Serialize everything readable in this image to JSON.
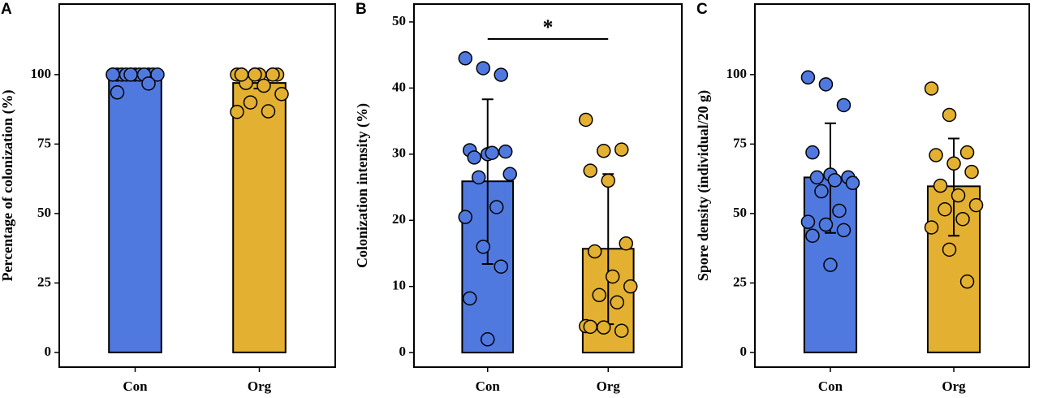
{
  "chart_data": [
    {
      "type": "bar",
      "panel_label": "A",
      "y_label": "Percentage of colonization (%)",
      "categories": [
        "Con",
        "Org"
      ],
      "colors": [
        "#5079e0",
        "#e3b031"
      ],
      "values": [
        99.6,
        97
      ],
      "error_lower": [
        98.6,
        95
      ],
      "error_upper": [
        100.6,
        99
      ],
      "points": [
        [
          100,
          100,
          100,
          100,
          100,
          100,
          100,
          100,
          100,
          100,
          100,
          100,
          100,
          96.8,
          93.6
        ],
        [
          100,
          100,
          100,
          100,
          100,
          100,
          97,
          96,
          93,
          90,
          86.8,
          86.6,
          100,
          100,
          100
        ]
      ],
      "ylim": [
        -5.3,
        125.4
      ],
      "yticks": [
        0,
        25,
        50,
        75,
        100
      ]
    },
    {
      "type": "bar",
      "panel_label": "B",
      "y_label": "Colonization intensity (%)",
      "categories": [
        "Con",
        "Org"
      ],
      "colors": [
        "#5079e0",
        "#e3b031"
      ],
      "values": [
        25.9,
        15.7
      ],
      "error_lower": [
        13.4,
        4.3
      ],
      "error_upper": [
        38.3,
        27
      ],
      "points": [
        [
          44.5,
          43,
          42,
          30.6,
          30,
          30.4,
          29.5,
          30.2,
          27,
          26.5,
          22,
          20.5,
          16,
          13,
          8.2,
          2
        ],
        [
          35.2,
          30.5,
          30.7,
          27.5,
          26,
          16.5,
          15.3,
          11.5,
          10,
          8.7,
          7.6,
          4,
          3.8,
          3.3,
          3.9
        ]
      ],
      "annotation": "*",
      "ylim": [
        -2.2,
        52.7
      ],
      "yticks": [
        0,
        10,
        20,
        30,
        40,
        50
      ]
    },
    {
      "type": "bar",
      "panel_label": "C",
      "y_label": "Spore density (individual/20 g)",
      "categories": [
        "Con",
        "Org"
      ],
      "colors": [
        "#5079e0",
        "#e3b031"
      ],
      "values": [
        63,
        59.8
      ],
      "error_lower": [
        43,
        42
      ],
      "error_upper": [
        82.5,
        77
      ],
      "points": [
        [
          99,
          96.5,
          89,
          72,
          64,
          63,
          63,
          62,
          61,
          58,
          51,
          47,
          46,
          44,
          42,
          31.5
        ],
        [
          95,
          85.5,
          72,
          71,
          68,
          65,
          60,
          56.5,
          53,
          51.5,
          48,
          45,
          37,
          25.5
        ]
      ],
      "ylim": [
        -5.3,
        125.4
      ],
      "yticks": [
        0,
        25,
        50,
        75,
        100
      ]
    }
  ]
}
